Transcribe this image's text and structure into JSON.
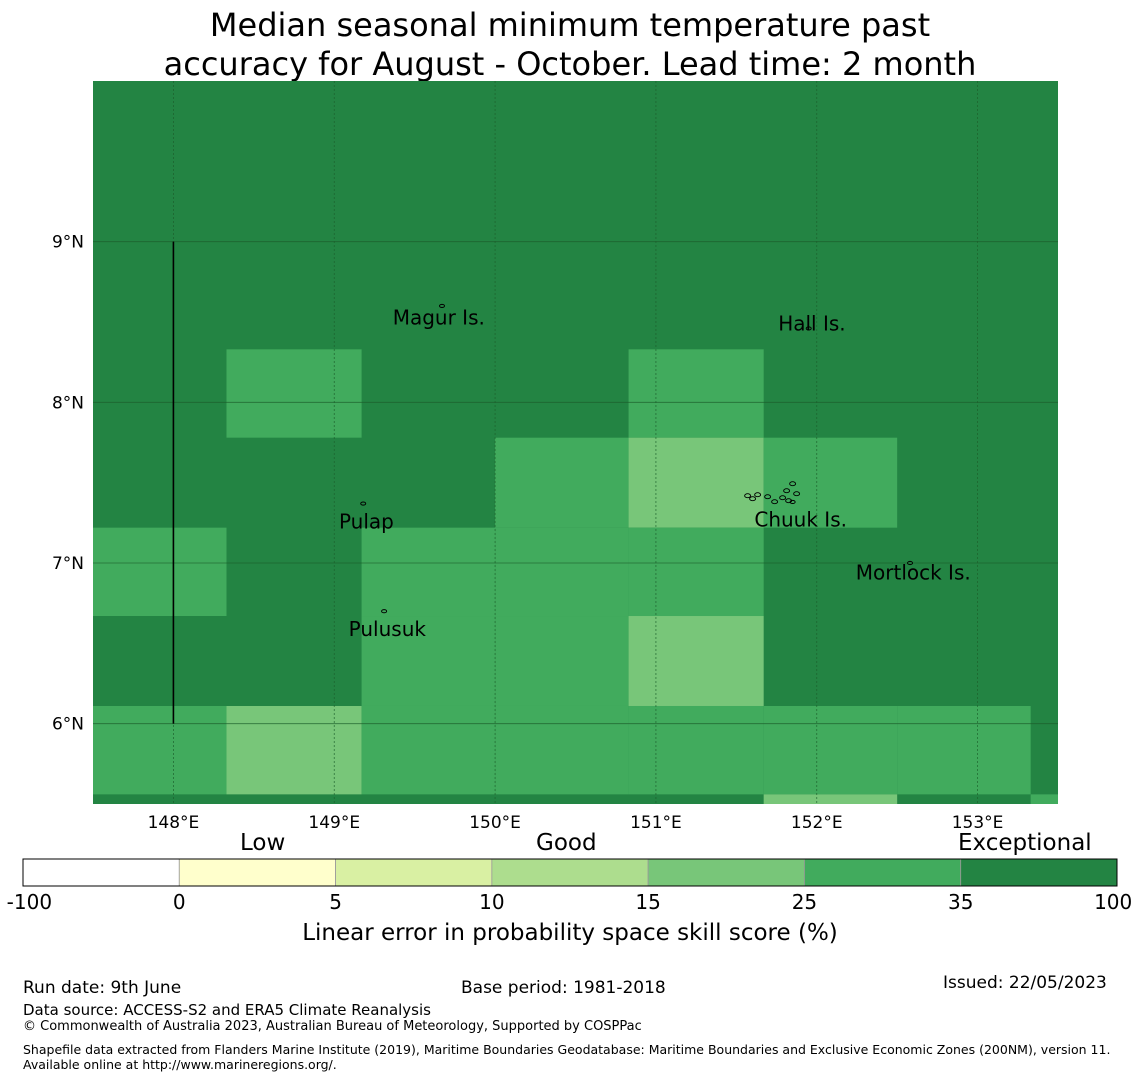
{
  "title_line1": "Median seasonal minimum temperature past",
  "title_line2": "accuracy for August - October. Lead time: 2 month",
  "map": {
    "extent": {
      "lon": [
        147.5,
        153.5
      ],
      "lat": [
        5.5,
        10.0
      ]
    },
    "lon_ticks": [
      148,
      149,
      150,
      151,
      152,
      153
    ],
    "lon_tick_labels": [
      "148°E",
      "149°E",
      "150°E",
      "151°E",
      "152°E",
      "153°E"
    ],
    "lat_ticks": [
      6,
      7,
      8,
      9
    ],
    "lat_tick_labels": [
      "6°N",
      "7°N",
      "8°N",
      "9°N"
    ],
    "boundary_line": {
      "lon": 148.0,
      "lat": [
        6.0,
        9.0
      ]
    },
    "labels": [
      {
        "text": "Magur Is.",
        "lon": 149.65,
        "lat": 8.52
      },
      {
        "text": "Hall Is.",
        "lon": 151.97,
        "lat": 8.48
      },
      {
        "text": "Pulap",
        "lon": 149.2,
        "lat": 7.25
      },
      {
        "text": "Chuuk Is.",
        "lon": 151.9,
        "lat": 7.26
      },
      {
        "text": "Mortlock Is.",
        "lon": 152.6,
        "lat": 6.93
      },
      {
        "text": "Pulusuk",
        "lon": 149.33,
        "lat": 6.58
      }
    ],
    "islands": [
      {
        "lon": 149.67,
        "lat": 8.6
      },
      {
        "lon": 149.18,
        "lat": 7.37
      },
      {
        "lon": 149.31,
        "lat": 6.7
      },
      {
        "lon": 151.85,
        "lat": 7.38
      },
      {
        "lon": 151.95,
        "lat": 8.46
      },
      {
        "lon": 152.58,
        "lat": 7.0
      }
    ],
    "background_class": 6,
    "cells": [
      {
        "lon": [
          148.33,
          149.17
        ],
        "lat": [
          7.78,
          8.33
        ],
        "class": 5
      },
      {
        "lon": [
          150.83,
          151.67
        ],
        "lat": [
          7.78,
          8.33
        ],
        "class": 5
      },
      {
        "lon": [
          150.0,
          150.83
        ],
        "lat": [
          7.22,
          7.78
        ],
        "class": 5
      },
      {
        "lon": [
          150.83,
          151.67
        ],
        "lat": [
          7.22,
          7.78
        ],
        "class": 4
      },
      {
        "lon": [
          151.67,
          152.5
        ],
        "lat": [
          7.22,
          7.78
        ],
        "class": 5
      },
      {
        "lon": [
          147.5,
          148.33
        ],
        "lat": [
          6.67,
          7.22
        ],
        "class": 5
      },
      {
        "lon": [
          149.17,
          150.0
        ],
        "lat": [
          6.67,
          7.22
        ],
        "class": 5
      },
      {
        "lon": [
          150.0,
          150.83
        ],
        "lat": [
          6.67,
          7.22
        ],
        "class": 5
      },
      {
        "lon": [
          150.83,
          151.67
        ],
        "lat": [
          6.67,
          7.22
        ],
        "class": 5
      },
      {
        "lon": [
          149.17,
          150.0
        ],
        "lat": [
          6.11,
          6.67
        ],
        "class": 5
      },
      {
        "lon": [
          150.0,
          150.83
        ],
        "lat": [
          6.11,
          6.67
        ],
        "class": 5
      },
      {
        "lon": [
          150.83,
          151.67
        ],
        "lat": [
          6.11,
          6.67
        ],
        "class": 4
      },
      {
        "lon": [
          147.5,
          148.33
        ],
        "lat": [
          5.56,
          6.11
        ],
        "class": 5
      },
      {
        "lon": [
          148.33,
          149.17
        ],
        "lat": [
          5.56,
          6.11
        ],
        "class": 4
      },
      {
        "lon": [
          149.17,
          150.0
        ],
        "lat": [
          5.56,
          6.11
        ],
        "class": 5
      },
      {
        "lon": [
          150.0,
          150.83
        ],
        "lat": [
          5.56,
          6.11
        ],
        "class": 5
      },
      {
        "lon": [
          150.83,
          151.67
        ],
        "lat": [
          5.56,
          6.11
        ],
        "class": 5
      },
      {
        "lon": [
          151.67,
          152.5
        ],
        "lat": [
          5.56,
          6.11
        ],
        "class": 5
      },
      {
        "lon": [
          152.5,
          153.33
        ],
        "lat": [
          5.56,
          6.11
        ],
        "class": 5
      },
      {
        "lon": [
          151.67,
          152.5
        ],
        "lat": [
          5.5,
          5.56
        ],
        "class": 4
      },
      {
        "lon": [
          153.33,
          153.5
        ],
        "lat": [
          5.5,
          5.56
        ],
        "class": 5
      }
    ]
  },
  "colorbar": {
    "categories": [
      "Low",
      "Good",
      "Exceptional"
    ],
    "boundaries": [
      "-100",
      "0",
      "5",
      "10",
      "15",
      "25",
      "35",
      "100"
    ],
    "colors": [
      "#ffffff",
      "#ffffcc",
      "#d9f0a3",
      "#addd8e",
      "#78c679",
      "#41ab5d",
      "#238443"
    ],
    "label": "Linear error in probability space skill score (%)"
  },
  "footer": {
    "run_date": "Run date: 9th June",
    "base_period": "Base period: 1981-2018",
    "issued": "Issued: 22/05/2023",
    "data_source": "Data source: ACCESS-S2 and ERA5 Climate Reanalysis",
    "copyright": "© Commonwealth of Australia 2023, Australian Bureau of Meteorology, Supported by COSPPac",
    "shapefile": "Shapefile data extracted from Flanders Marine Institute (2019), Maritime Boundaries Geodatabase: Maritime Boundaries and Exclusive Economic Zones (200NM), version 11. Available online at http://www.marineregions.org/."
  }
}
